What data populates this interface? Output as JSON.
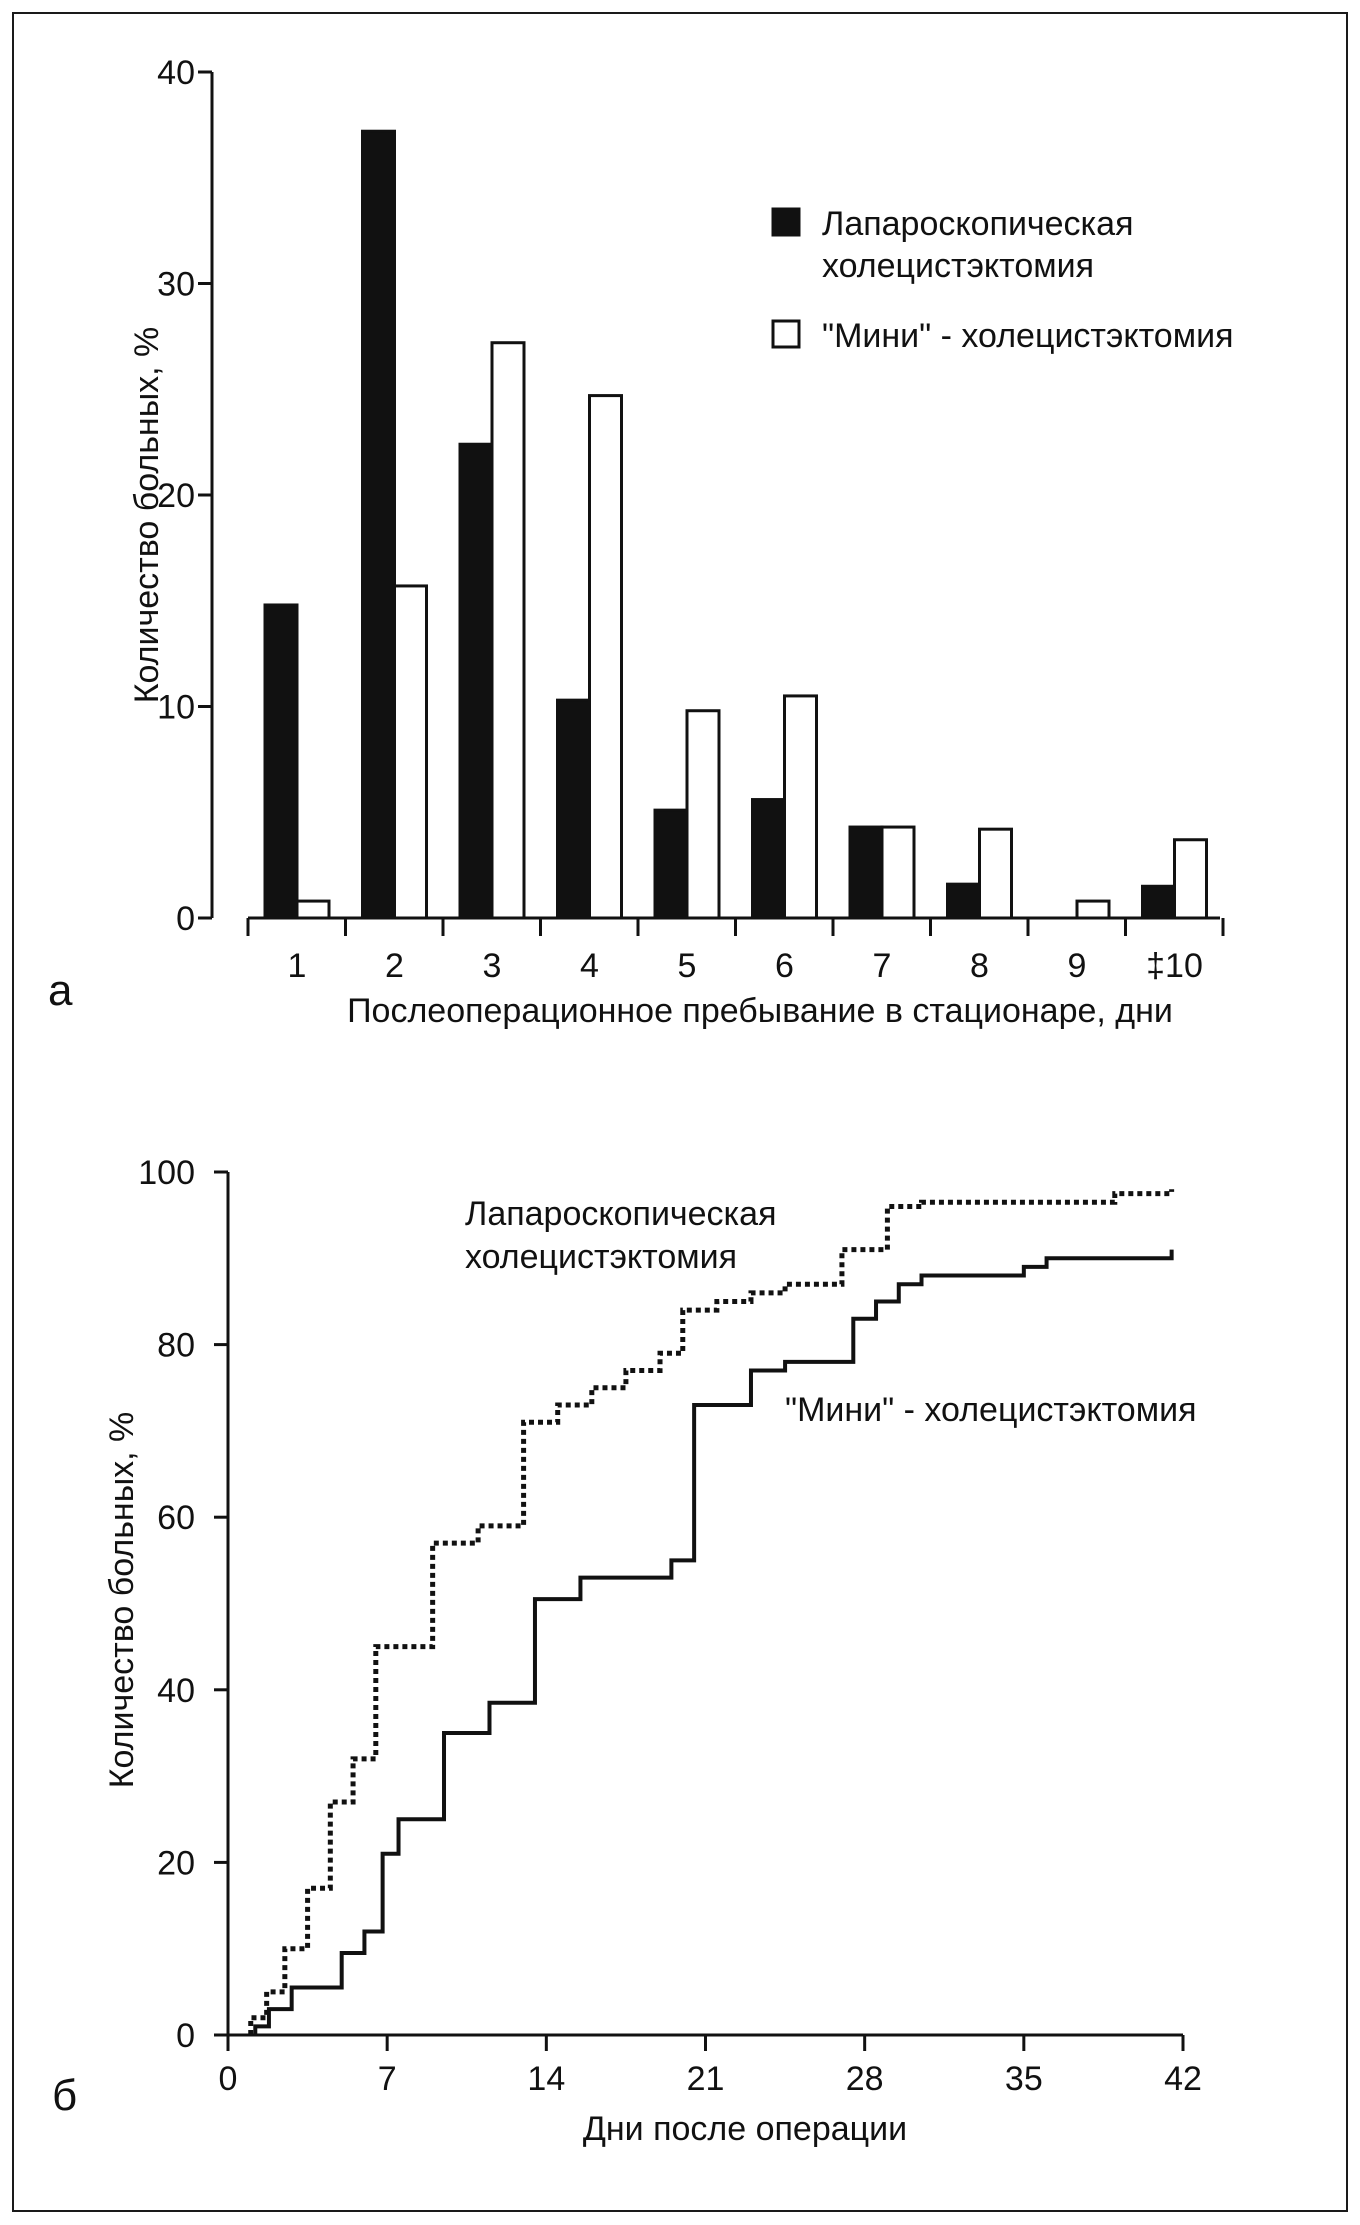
{
  "chart_data": [
    {
      "type": "bar",
      "panel_label": "а",
      "xlabel": "Послеоперационное пребывание в стационаре, дни",
      "ylabel": "Количество больных, %",
      "ylim": [
        0,
        40
      ],
      "yticks": [
        0,
        10,
        20,
        30,
        40
      ],
      "categories": [
        "1",
        "2",
        "3",
        "4",
        "5",
        "6",
        "7",
        "8",
        "9",
        "‡10"
      ],
      "series": [
        {
          "name": "Лапароскопическая холецистэктомия",
          "legend_lines": [
            "Лапароскопическая",
            "холецистэктомия"
          ],
          "fill": "#111111",
          "values": [
            14.8,
            37.2,
            22.4,
            10.3,
            5.1,
            5.6,
            4.3,
            1.6,
            0,
            1.5
          ]
        },
        {
          "name": "\"Мини\"-холецистэктомия",
          "legend_lines": [
            "\"Мини\" - холецистэктомия"
          ],
          "fill": "#ffffff",
          "values": [
            0.8,
            15.7,
            27.2,
            24.7,
            9.8,
            10.5,
            4.3,
            4.2,
            0.8,
            3.7
          ]
        }
      ],
      "grid": false,
      "legend_position": "top-right"
    },
    {
      "type": "line",
      "step": true,
      "panel_label": "б",
      "xlabel": "Дни после операции",
      "ylabel": "Количество больных, %",
      "xlim": [
        0,
        42
      ],
      "ylim": [
        0,
        100
      ],
      "xticks": [
        0,
        7,
        14,
        21,
        28,
        35,
        42
      ],
      "yticks": [
        0,
        20,
        40,
        60,
        80,
        100
      ],
      "series": [
        {
          "name": "Лапароскопическая холецистэктомия",
          "label_lines": [
            "Лапароскопическая",
            "холецистэктомия"
          ],
          "style": "dotted",
          "x": [
            1,
            1.7,
            2.5,
            3.5,
            4.5,
            5.5,
            6.5,
            9,
            11,
            13,
            14.5,
            16,
            17.5,
            19,
            20,
            21.5,
            23,
            24.5,
            27,
            29,
            30.5,
            32,
            39,
            41.5
          ],
          "y": [
            2,
            5,
            10,
            17,
            27,
            32,
            45,
            57,
            59,
            71,
            73,
            75,
            77,
            79,
            84,
            85,
            86,
            87,
            91,
            96,
            96.5,
            96.5,
            97.5,
            98
          ]
        },
        {
          "name": "\"Мини\"-холецистэктомия",
          "label_lines": [
            "\"Мини\" - холецистэктомия"
          ],
          "style": "solid",
          "x": [
            1.2,
            1.8,
            2.8,
            5,
            6,
            6.8,
            7.5,
            9.5,
            11.5,
            13.5,
            15.5,
            19.5,
            20.5,
            23,
            24.5,
            27.5,
            28.5,
            29.5,
            30.5,
            31.5,
            35,
            36,
            41.5
          ],
          "y": [
            1,
            3,
            5.5,
            9.5,
            12,
            21,
            25,
            35,
            38.5,
            50.5,
            53,
            55,
            73,
            77,
            78,
            83,
            85,
            87,
            88,
            88,
            89,
            90,
            91
          ]
        }
      ],
      "grid": false
    }
  ]
}
